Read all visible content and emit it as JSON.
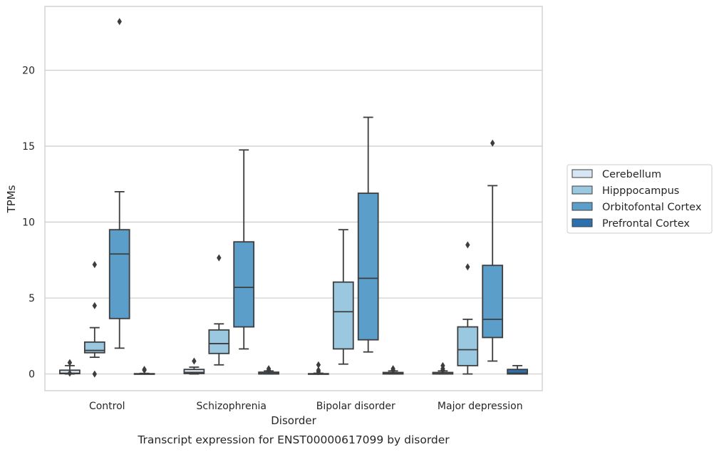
{
  "chart_data": {
    "type": "box",
    "xlabel": "Disorder",
    "ylabel": "TPMs",
    "caption": "Transcript expression for ENST00000617099 by disorder",
    "ylim": [
      -1.1,
      24.2
    ],
    "yticks": [
      0,
      5,
      10,
      15,
      20
    ],
    "grid": true,
    "legend_position": "right",
    "categories": [
      "Control",
      "Schizophrenia",
      "Bipolar disorder",
      "Major depression"
    ],
    "series": [
      {
        "name": "Cerebellum",
        "color": "#d6e6f4",
        "boxes": [
          {
            "whislo": 0,
            "q1": 0.02,
            "med": 0.05,
            "q3": 0.25,
            "whishi": 0.55,
            "fliers": [
              0.75,
              0.05
            ]
          },
          {
            "whislo": 0,
            "q1": 0.03,
            "med": 0.1,
            "q3": 0.3,
            "whishi": 0.45,
            "fliers": [
              0.85
            ]
          },
          {
            "whislo": 0,
            "q1": 0,
            "med": 0,
            "q3": 0.02,
            "whishi": 0.05,
            "fliers": [
              0.6,
              0.25,
              0.15
            ]
          },
          {
            "whislo": 0,
            "q1": 0,
            "med": 0.02,
            "q3": 0.1,
            "whishi": 0.2,
            "fliers": [
              0.55,
              0.35,
              0.25
            ]
          }
        ]
      },
      {
        "name": "Hipppocampus",
        "color": "#9ac8e0",
        "boxes": [
          {
            "whislo": 1.1,
            "q1": 1.4,
            "med": 1.55,
            "q3": 2.1,
            "whishi": 3.05,
            "fliers": [
              7.2,
              4.5,
              0
            ]
          },
          {
            "whislo": 0.6,
            "q1": 1.35,
            "med": 2.0,
            "q3": 2.9,
            "whishi": 3.3,
            "fliers": [
              7.65
            ]
          },
          {
            "whislo": 0.65,
            "q1": 1.65,
            "med": 4.1,
            "q3": 6.05,
            "whishi": 9.5,
            "fliers": []
          },
          {
            "whislo": 0,
            "q1": 0.55,
            "med": 1.6,
            "q3": 3.1,
            "whishi": 3.6,
            "fliers": [
              8.5,
              7.05
            ]
          }
        ]
      },
      {
        "name": "Orbitofontal Cortex",
        "color": "#5a9ec9",
        "boxes": [
          {
            "whislo": 1.7,
            "q1": 3.65,
            "med": 7.9,
            "q3": 9.5,
            "whishi": 12.0,
            "fliers": [
              23.2
            ]
          },
          {
            "whislo": 1.65,
            "q1": 3.1,
            "med": 5.7,
            "q3": 8.7,
            "whishi": 14.75,
            "fliers": []
          },
          {
            "whislo": 1.45,
            "q1": 2.25,
            "med": 6.3,
            "q3": 11.9,
            "whishi": 16.9,
            "fliers": []
          },
          {
            "whislo": 0.85,
            "q1": 2.4,
            "med": 3.6,
            "q3": 7.15,
            "whishi": 12.4,
            "fliers": [
              15.2
            ]
          }
        ]
      },
      {
        "name": "Prefrontal Cortex",
        "color": "#2c70ae",
        "boxes": [
          {
            "whislo": 0,
            "q1": 0,
            "med": 0,
            "q3": 0.02,
            "whishi": 0.04,
            "fliers": [
              0.3,
              0.25
            ]
          },
          {
            "whislo": 0,
            "q1": 0,
            "med": 0.02,
            "q3": 0.12,
            "whishi": 0.2,
            "fliers": [
              0.35,
              0.25
            ]
          },
          {
            "whislo": 0,
            "q1": 0,
            "med": 0.02,
            "q3": 0.1,
            "whishi": 0.2,
            "fliers": [
              0.35,
              0.25
            ]
          },
          {
            "whislo": 0,
            "q1": 0,
            "med": 0.05,
            "q3": 0.3,
            "whishi": 0.55,
            "fliers": []
          }
        ]
      }
    ]
  }
}
